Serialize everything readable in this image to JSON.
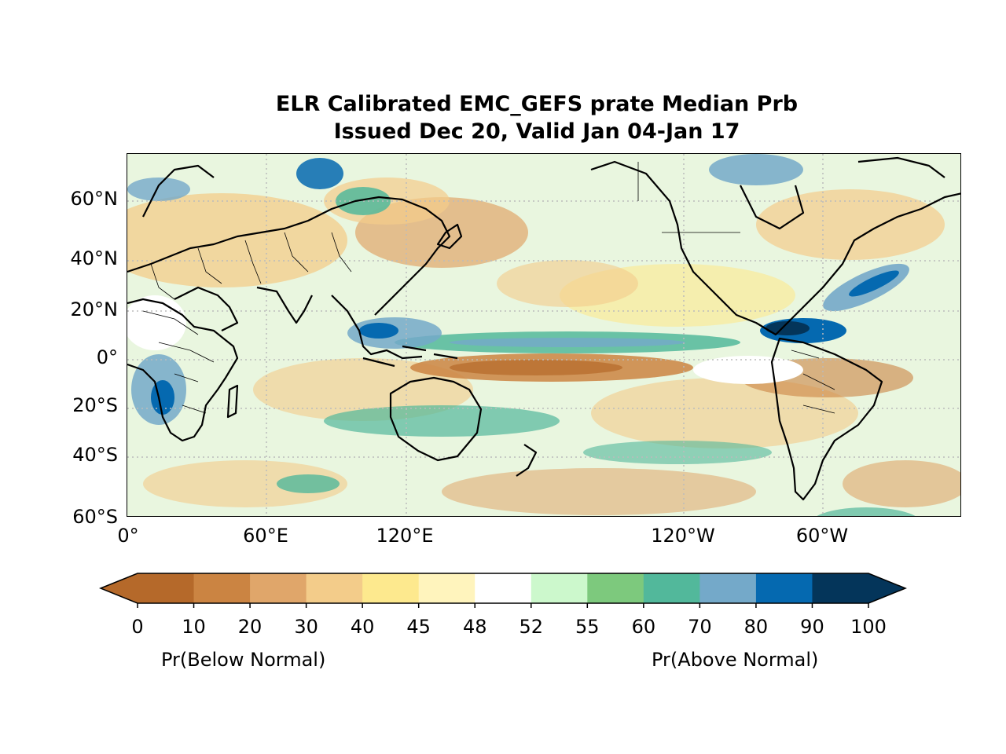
{
  "title": {
    "line1": "ELR Calibrated EMC_GEFS prate Median Prb",
    "line2": "Issued Dec 20, Valid Jan 04-Jan 17"
  },
  "map": {
    "projection": "PlateCarree",
    "extent": {
      "lon": [
        0,
        360
      ],
      "lat": [
        -60,
        80
      ]
    },
    "gridlines": "dotted",
    "lat_ticks": [
      {
        "lat": 60,
        "label": "60°N"
      },
      {
        "lat": 40,
        "label": "40°N"
      },
      {
        "lat": 20,
        "label": "20°N"
      },
      {
        "lat": 0,
        "label": "0°"
      },
      {
        "lat": -20,
        "label": "20°S"
      },
      {
        "lat": -40,
        "label": "40°S"
      },
      {
        "lat": -60,
        "label": "60°S"
      }
    ],
    "lon_ticks": [
      {
        "lon": 0,
        "label": "0°"
      },
      {
        "lon": 60,
        "label": "60°E"
      },
      {
        "lon": 120,
        "label": "120°E"
      },
      {
        "lon": 240,
        "label": "120°W"
      },
      {
        "lon": 300,
        "label": "60°W"
      }
    ]
  },
  "colorbar": {
    "boundaries": [
      "0",
      "10",
      "20",
      "30",
      "40",
      "45",
      "48",
      "52",
      "55",
      "60",
      "70",
      "80",
      "90",
      "100"
    ],
    "colors": [
      "#b5692a",
      "#cb8442",
      "#e0a66a",
      "#f3cc8a",
      "#fde98e",
      "#fff4bd",
      "#ffffff",
      "#ccf8cc",
      "#7dc97d",
      "#52b89b",
      "#74a9c9",
      "#0569b0",
      "#04355a"
    ],
    "extend_low_color": "#b5692a",
    "extend_high_color": "#04355a",
    "below_label": "Pr(Below Normal)",
    "above_label": "Pr(Above Normal)"
  }
}
